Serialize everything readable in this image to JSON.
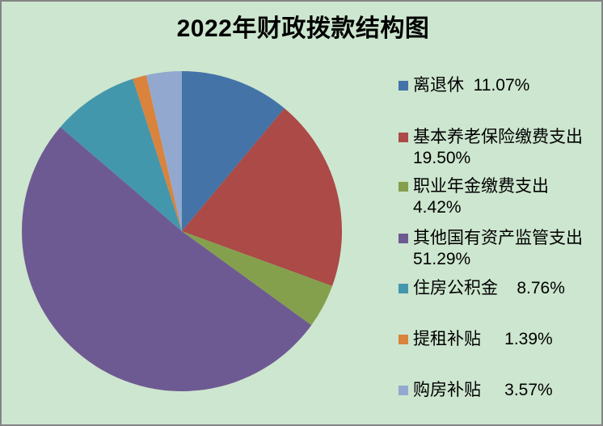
{
  "window": {
    "background": "#CDE6CF",
    "frame_border_color": "#848484"
  },
  "header": {
    "title": "2022年财政拨款结构图"
  },
  "chart_data": {
    "type": "pie",
    "title": "2022年财政拨款结构图",
    "categories": [
      "离退休",
      "基本养老保险缴费支出",
      "职业年金缴费支出",
      "其他国有资产监管支出",
      "住房公积金",
      "提租补贴",
      "购房补贴"
    ],
    "values": [
      11.07,
      19.5,
      4.42,
      51.29,
      8.76,
      1.39,
      3.57
    ],
    "unit": "%",
    "colors": [
      "#4473A8",
      "#AB4A47",
      "#85A04D",
      "#6E5A92",
      "#4397AD",
      "#D9833C",
      "#93A8CE"
    ],
    "legend_position": "right",
    "start_angle_deg": 0,
    "direction": "clockwise",
    "slice_data_labels_shown": false
  },
  "legend": {
    "items": [
      {
        "label": "离退休",
        "pct": "11.07%",
        "color": "#4473A8",
        "line1": "离退休  11.07%",
        "line2": ""
      },
      {
        "label": "基本养老保险缴费支出",
        "pct": "19.50%",
        "color": "#AB4A47",
        "line1": "基本养老保险缴费支出",
        "line2": "19.50%"
      },
      {
        "label": "职业年金缴费支出",
        "pct": "4.42%",
        "color": "#85A04D",
        "line1": "职业年金缴费支出",
        "line2": "4.42%"
      },
      {
        "label": "其他国有资产监管支出",
        "pct": "51.29%",
        "color": "#6E5A92",
        "line1": "其他国有资产监管支出",
        "line2": "51.29%"
      },
      {
        "label": "住房公积金",
        "pct": "8.76%",
        "color": "#4397AD",
        "line1": "住房公积金    8.76%",
        "line2": ""
      },
      {
        "label": "提租补贴",
        "pct": "1.39%",
        "color": "#D9833C",
        "line1": "提租补贴     1.39%",
        "line2": ""
      },
      {
        "label": "购房补贴",
        "pct": "3.57%",
        "color": "#93A8CE",
        "line1": "购房补贴     3.57%",
        "line2": ""
      }
    ]
  }
}
